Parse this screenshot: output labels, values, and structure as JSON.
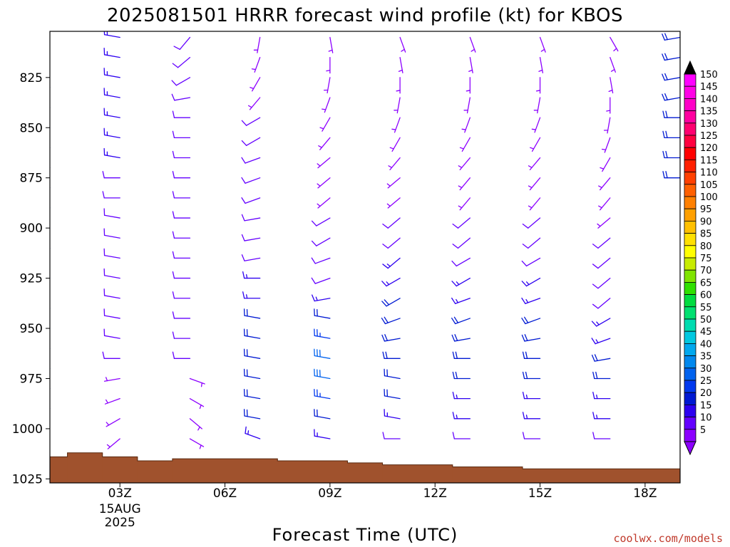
{
  "chart_data": {
    "type": "wind_barb_time_height",
    "title": "2025081501 HRRR forecast wind profile (kt) for KBOS",
    "xlabel": "Forecast Time (UTC)",
    "ylabel": "",
    "credit": "coolwx.com/models",
    "x_range_hours": [
      1.0,
      19.0
    ],
    "y_range_hPa": [
      1027,
      802
    ],
    "y_axis_inverted": true,
    "y_ticks": [
      825,
      850,
      875,
      900,
      925,
      950,
      975,
      1000,
      1025
    ],
    "y_tick_labels": [
      "825",
      "850",
      "875",
      "900",
      "925",
      "950",
      "975",
      "1000",
      "1025"
    ],
    "x_ticks": [
      {
        "hour": 3,
        "label": "03Z",
        "date_line1": "15AUG",
        "date_line2": "2025"
      },
      {
        "hour": 6,
        "label": "06Z"
      },
      {
        "hour": 9,
        "label": "09Z"
      },
      {
        "hour": 12,
        "label": "12Z"
      },
      {
        "hour": 15,
        "label": "15Z"
      },
      {
        "hour": 18,
        "label": "18Z"
      }
    ],
    "colorbar_levels_kt": [
      5,
      10,
      15,
      20,
      25,
      30,
      35,
      40,
      45,
      50,
      55,
      60,
      65,
      70,
      75,
      80,
      85,
      90,
      95,
      100,
      105,
      110,
      115,
      120,
      125,
      130,
      135,
      140,
      145,
      150
    ],
    "colorbar_colors": [
      "#8c00ff",
      "#6400ff",
      "#2d00f0",
      "#0019d2",
      "#0038ee",
      "#0062ee",
      "#0088ee",
      "#00a8ee",
      "#00c8e0",
      "#00dcb0",
      "#00e070",
      "#00dc40",
      "#30e000",
      "#80e400",
      "#c8ec00",
      "#ffff00",
      "#ffe000",
      "#ffc000",
      "#ffa000",
      "#ff8000",
      "#ff6000",
      "#ff4000",
      "#ff2000",
      "#ff0000",
      "#ff0040",
      "#ff0070",
      "#ff00a0",
      "#ff00c8",
      "#ff00e6",
      "#ff00ff"
    ],
    "surface_color": "#a0522d",
    "surface_pressure_hPa": [
      {
        "hour_start": 1.0,
        "hour_end": 1.5,
        "p": 1014
      },
      {
        "hour_start": 1.5,
        "hour_end": 2.5,
        "p": 1012
      },
      {
        "hour_start": 2.5,
        "hour_end": 3.5,
        "p": 1014
      },
      {
        "hour_start": 3.5,
        "hour_end": 4.5,
        "p": 1016
      },
      {
        "hour_start": 4.5,
        "hour_end": 7.5,
        "p": 1015
      },
      {
        "hour_start": 7.5,
        "hour_end": 9.5,
        "p": 1016
      },
      {
        "hour_start": 9.5,
        "hour_end": 10.5,
        "p": 1017
      },
      {
        "hour_start": 10.5,
        "hour_end": 12.5,
        "p": 1018
      },
      {
        "hour_start": 12.5,
        "hour_end": 14.5,
        "p": 1019
      },
      {
        "hour_start": 14.5,
        "hour_end": 19.0,
        "p": 1020
      }
    ],
    "wind_profiles": [
      {
        "hour": 1,
        "levels": [
          [
            980,
            290,
            20
          ],
          [
            990,
            280,
            20
          ],
          [
            970,
            290,
            25
          ],
          [
            960,
            290,
            25
          ],
          [
            950,
            290,
            30
          ],
          [
            940,
            290,
            30
          ],
          [
            925,
            300,
            25
          ],
          [
            910,
            300,
            25
          ],
          [
            900,
            300,
            25
          ],
          [
            890,
            300,
            25
          ],
          [
            880,
            290,
            20
          ],
          [
            870,
            290,
            20
          ],
          [
            860,
            290,
            20
          ],
          [
            850,
            280,
            20
          ],
          [
            840,
            290,
            20
          ],
          [
            830,
            290,
            20
          ]
        ]
      },
      {
        "hour": 3,
        "levels": [
          [
            1005,
            230,
            5
          ],
          [
            995,
            240,
            5
          ],
          [
            985,
            250,
            5
          ],
          [
            975,
            260,
            5
          ],
          [
            965,
            270,
            10
          ],
          [
            955,
            280,
            10
          ],
          [
            945,
            280,
            10
          ],
          [
            935,
            280,
            10
          ],
          [
            925,
            280,
            10
          ],
          [
            915,
            280,
            10
          ],
          [
            905,
            280,
            10
          ],
          [
            895,
            280,
            10
          ],
          [
            885,
            270,
            10
          ],
          [
            875,
            270,
            10
          ],
          [
            865,
            280,
            15
          ],
          [
            855,
            280,
            15
          ],
          [
            845,
            280,
            15
          ],
          [
            835,
            280,
            15
          ],
          [
            825,
            280,
            15
          ],
          [
            815,
            280,
            15
          ],
          [
            805,
            280,
            15
          ]
        ]
      },
      {
        "hour": 5,
        "levels": [
          [
            1005,
            120,
            5
          ],
          [
            995,
            130,
            5
          ],
          [
            985,
            120,
            5
          ],
          [
            975,
            110,
            5
          ],
          [
            965,
            270,
            10
          ],
          [
            955,
            270,
            10
          ],
          [
            945,
            270,
            10
          ],
          [
            935,
            270,
            10
          ],
          [
            925,
            270,
            10
          ],
          [
            915,
            270,
            10
          ],
          [
            905,
            270,
            10
          ],
          [
            895,
            270,
            10
          ],
          [
            885,
            270,
            10
          ],
          [
            875,
            270,
            10
          ],
          [
            865,
            270,
            10
          ],
          [
            855,
            270,
            10
          ],
          [
            845,
            270,
            10
          ],
          [
            835,
            260,
            10
          ],
          [
            825,
            240,
            10
          ],
          [
            815,
            230,
            10
          ],
          [
            805,
            220,
            10
          ]
        ]
      },
      {
        "hour": 7,
        "levels": [
          [
            1005,
            290,
            15
          ],
          [
            995,
            280,
            20
          ],
          [
            985,
            280,
            20
          ],
          [
            975,
            280,
            20
          ],
          [
            965,
            280,
            20
          ],
          [
            955,
            280,
            20
          ],
          [
            945,
            280,
            20
          ],
          [
            935,
            270,
            15
          ],
          [
            925,
            270,
            15
          ],
          [
            915,
            260,
            10
          ],
          [
            905,
            260,
            10
          ],
          [
            895,
            260,
            10
          ],
          [
            885,
            250,
            10
          ],
          [
            875,
            250,
            10
          ],
          [
            865,
            250,
            10
          ],
          [
            855,
            240,
            10
          ],
          [
            845,
            240,
            10
          ],
          [
            835,
            220,
            5
          ],
          [
            825,
            210,
            5
          ],
          [
            815,
            200,
            5
          ],
          [
            805,
            190,
            5
          ]
        ]
      },
      {
        "hour": 9,
        "levels": [
          [
            1005,
            280,
            15
          ],
          [
            995,
            280,
            20
          ],
          [
            985,
            280,
            25
          ],
          [
            975,
            280,
            30
          ],
          [
            965,
            280,
            30
          ],
          [
            955,
            280,
            25
          ],
          [
            945,
            280,
            20
          ],
          [
            935,
            260,
            15
          ],
          [
            925,
            250,
            10
          ],
          [
            915,
            250,
            10
          ],
          [
            905,
            240,
            10
          ],
          [
            895,
            240,
            10
          ],
          [
            885,
            230,
            5
          ],
          [
            875,
            230,
            5
          ],
          [
            865,
            230,
            5
          ],
          [
            855,
            220,
            5
          ],
          [
            845,
            210,
            5
          ],
          [
            835,
            200,
            5
          ],
          [
            825,
            190,
            5
          ],
          [
            815,
            180,
            5
          ],
          [
            805,
            170,
            5
          ]
        ]
      },
      {
        "hour": 11,
        "levels": [
          [
            1005,
            270,
            10
          ],
          [
            995,
            280,
            15
          ],
          [
            985,
            280,
            20
          ],
          [
            975,
            280,
            20
          ],
          [
            965,
            270,
            20
          ],
          [
            955,
            260,
            20
          ],
          [
            945,
            250,
            20
          ],
          [
            935,
            240,
            20
          ],
          [
            925,
            240,
            15
          ],
          [
            915,
            230,
            15
          ],
          [
            905,
            230,
            10
          ],
          [
            895,
            230,
            10
          ],
          [
            885,
            230,
            5
          ],
          [
            875,
            230,
            5
          ],
          [
            865,
            220,
            5
          ],
          [
            855,
            210,
            5
          ],
          [
            845,
            200,
            5
          ],
          [
            835,
            190,
            5
          ],
          [
            825,
            180,
            5
          ],
          [
            815,
            170,
            5
          ],
          [
            805,
            160,
            5
          ]
        ]
      },
      {
        "hour": 13,
        "levels": [
          [
            1005,
            270,
            10
          ],
          [
            995,
            270,
            15
          ],
          [
            985,
            270,
            15
          ],
          [
            975,
            270,
            20
          ],
          [
            965,
            270,
            20
          ],
          [
            955,
            260,
            20
          ],
          [
            945,
            250,
            20
          ],
          [
            935,
            250,
            15
          ],
          [
            925,
            240,
            15
          ],
          [
            915,
            240,
            10
          ],
          [
            905,
            230,
            10
          ],
          [
            895,
            230,
            10
          ],
          [
            885,
            220,
            5
          ],
          [
            875,
            220,
            5
          ],
          [
            865,
            220,
            5
          ],
          [
            855,
            210,
            5
          ],
          [
            845,
            200,
            5
          ],
          [
            835,
            190,
            5
          ],
          [
            825,
            180,
            5
          ],
          [
            815,
            170,
            5
          ],
          [
            805,
            160,
            5
          ]
        ]
      },
      {
        "hour": 15,
        "levels": [
          [
            1005,
            270,
            10
          ],
          [
            995,
            270,
            15
          ],
          [
            985,
            270,
            15
          ],
          [
            975,
            270,
            20
          ],
          [
            965,
            270,
            20
          ],
          [
            955,
            260,
            20
          ],
          [
            945,
            250,
            20
          ],
          [
            935,
            250,
            15
          ],
          [
            925,
            240,
            15
          ],
          [
            915,
            240,
            10
          ],
          [
            905,
            230,
            10
          ],
          [
            895,
            230,
            10
          ],
          [
            885,
            220,
            5
          ],
          [
            875,
            220,
            5
          ],
          [
            865,
            220,
            5
          ],
          [
            855,
            210,
            5
          ],
          [
            845,
            200,
            5
          ],
          [
            835,
            190,
            5
          ],
          [
            825,
            180,
            5
          ],
          [
            815,
            170,
            5
          ],
          [
            805,
            160,
            5
          ]
        ]
      },
      {
        "hour": 17,
        "levels": [
          [
            1005,
            270,
            10
          ],
          [
            995,
            270,
            15
          ],
          [
            985,
            270,
            15
          ],
          [
            975,
            270,
            20
          ],
          [
            965,
            260,
            20
          ],
          [
            955,
            250,
            15
          ],
          [
            945,
            240,
            15
          ],
          [
            935,
            230,
            10
          ],
          [
            925,
            230,
            10
          ],
          [
            915,
            230,
            10
          ],
          [
            905,
            230,
            10
          ],
          [
            895,
            230,
            5
          ],
          [
            885,
            220,
            5
          ],
          [
            875,
            220,
            5
          ],
          [
            865,
            210,
            5
          ],
          [
            855,
            200,
            5
          ],
          [
            845,
            190,
            5
          ],
          [
            835,
            180,
            5
          ],
          [
            825,
            170,
            5
          ],
          [
            815,
            160,
            5
          ],
          [
            805,
            150,
            5
          ]
        ]
      },
      {
        "hour": 19,
        "levels": [
          [
            875,
            270,
            20
          ],
          [
            865,
            270,
            20
          ],
          [
            855,
            270,
            20
          ],
          [
            845,
            270,
            20
          ],
          [
            835,
            260,
            20
          ],
          [
            825,
            260,
            20
          ],
          [
            815,
            260,
            20
          ],
          [
            805,
            260,
            20
          ]
        ]
      }
    ]
  }
}
